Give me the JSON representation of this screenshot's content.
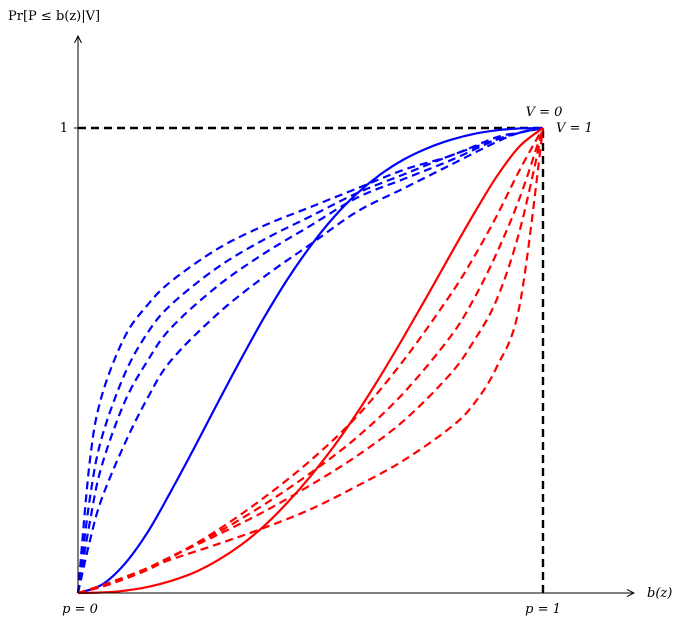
{
  "chart_data": {
    "type": "line",
    "title": "",
    "xlabel": "b(z)",
    "ylabel": "Pr[P ≤ b(z)|V]",
    "xlim": [
      0,
      1.2
    ],
    "ylim": [
      0,
      1.1
    ],
    "x_tick_labels": [
      {
        "x": 0,
        "text": "p = 0"
      },
      {
        "x": 1,
        "text": "p = 1"
      }
    ],
    "y_tick_labels": [
      {
        "y": 1,
        "text": "1"
      }
    ],
    "reference_lines": [
      {
        "kind": "horizontal",
        "y": 1,
        "x_from": 0,
        "x_to": 1,
        "style": "dashed",
        "color": "#000000"
      },
      {
        "kind": "vertical",
        "x": 1,
        "y_from": 0,
        "y_to": 1,
        "style": "dashed",
        "color": "#000000"
      }
    ],
    "annotations": [
      {
        "text": "V = 0",
        "x": 1.0,
        "y": 1.02,
        "color": "#0000ff"
      },
      {
        "text": "V = 1",
        "x": 1.03,
        "y": 1.0,
        "color": "#ff0000"
      }
    ],
    "series": [
      {
        "group": "V0",
        "style": "solid",
        "color": "#0000ff",
        "x": [
          0,
          0.05,
          0.1,
          0.15,
          0.2,
          0.25,
          0.3,
          0.35,
          0.4,
          0.45,
          0.5,
          0.55,
          0.6,
          0.65,
          0.7,
          0.75,
          0.8,
          0.85,
          0.9,
          0.95,
          1
        ],
        "y": [
          0,
          0.017,
          0.062,
          0.131,
          0.219,
          0.312,
          0.408,
          0.502,
          0.592,
          0.674,
          0.746,
          0.808,
          0.859,
          0.9,
          0.932,
          0.956,
          0.974,
          0.987,
          0.995,
          0.999,
          1
        ]
      },
      {
        "group": "V0",
        "style": "dashed",
        "color": "#0000ff",
        "x": [
          0,
          0.025,
          0.05,
          0.1,
          0.15,
          0.2,
          0.3,
          0.4,
          0.5,
          0.6,
          0.7,
          0.8,
          0.9,
          0.95,
          1
        ],
        "y": [
          0,
          0.11,
          0.2,
          0.32,
          0.42,
          0.5,
          0.6,
          0.68,
          0.75,
          0.82,
          0.87,
          0.92,
          0.97,
          0.99,
          1
        ]
      },
      {
        "group": "V0",
        "style": "dashed",
        "color": "#0000ff",
        "x": [
          0,
          0.025,
          0.05,
          0.1,
          0.15,
          0.2,
          0.3,
          0.4,
          0.5,
          0.6,
          0.7,
          0.8,
          0.9,
          0.95,
          1
        ],
        "y": [
          0,
          0.15,
          0.27,
          0.41,
          0.5,
          0.57,
          0.66,
          0.73,
          0.79,
          0.85,
          0.89,
          0.93,
          0.975,
          0.99,
          1
        ]
      },
      {
        "group": "V0",
        "style": "dashed",
        "color": "#0000ff",
        "x": [
          0,
          0.025,
          0.05,
          0.1,
          0.15,
          0.2,
          0.3,
          0.4,
          0.5,
          0.6,
          0.7,
          0.8,
          0.9,
          0.95,
          1
        ],
        "y": [
          0,
          0.2,
          0.33,
          0.47,
          0.56,
          0.62,
          0.7,
          0.76,
          0.81,
          0.86,
          0.9,
          0.94,
          0.975,
          0.99,
          1
        ]
      },
      {
        "group": "V0",
        "style": "dashed",
        "color": "#0000ff",
        "x": [
          0,
          0.025,
          0.05,
          0.1,
          0.15,
          0.2,
          0.3,
          0.4,
          0.5,
          0.6,
          0.7,
          0.8,
          0.9,
          0.95,
          1
        ],
        "y": [
          0,
          0.28,
          0.42,
          0.55,
          0.62,
          0.67,
          0.74,
          0.79,
          0.83,
          0.87,
          0.91,
          0.94,
          0.98,
          0.99,
          1
        ]
      },
      {
        "group": "V1",
        "style": "solid",
        "color": "#ff0000",
        "x": [
          0,
          0.05,
          0.1,
          0.15,
          0.2,
          0.25,
          0.3,
          0.35,
          0.4,
          0.45,
          0.5,
          0.55,
          0.6,
          0.65,
          0.7,
          0.75,
          0.8,
          0.85,
          0.9,
          0.95,
          1
        ],
        "y": [
          0,
          0.001,
          0.005,
          0.013,
          0.026,
          0.044,
          0.07,
          0.103,
          0.144,
          0.194,
          0.251,
          0.315,
          0.387,
          0.466,
          0.55,
          0.637,
          0.726,
          0.813,
          0.895,
          0.961,
          1
        ]
      },
      {
        "group": "V1",
        "style": "dashed",
        "color": "#ff0000",
        "x": [
          0,
          0.05,
          0.1,
          0.15,
          0.2,
          0.3,
          0.4,
          0.5,
          0.6,
          0.7,
          0.8,
          0.85,
          0.9,
          0.95,
          1
        ],
        "y": [
          0,
          0.013,
          0.03,
          0.05,
          0.076,
          0.135,
          0.205,
          0.285,
          0.38,
          0.5,
          0.64,
          0.72,
          0.81,
          0.91,
          1
        ]
      },
      {
        "group": "V1",
        "style": "dashed",
        "color": "#ff0000",
        "x": [
          0,
          0.05,
          0.1,
          0.15,
          0.2,
          0.3,
          0.4,
          0.5,
          0.6,
          0.7,
          0.8,
          0.85,
          0.9,
          0.95,
          1
        ],
        "y": [
          0,
          0.014,
          0.032,
          0.052,
          0.078,
          0.13,
          0.19,
          0.258,
          0.335,
          0.43,
          0.55,
          0.63,
          0.73,
          0.85,
          1
        ]
      },
      {
        "group": "V1",
        "style": "dashed",
        "color": "#ff0000",
        "x": [
          0,
          0.05,
          0.1,
          0.15,
          0.2,
          0.3,
          0.4,
          0.5,
          0.6,
          0.7,
          0.8,
          0.85,
          0.9,
          0.95,
          1
        ],
        "y": [
          0,
          0.015,
          0.034,
          0.054,
          0.078,
          0.125,
          0.175,
          0.232,
          0.295,
          0.37,
          0.47,
          0.54,
          0.63,
          0.78,
          1
        ]
      },
      {
        "group": "V1",
        "style": "dashed",
        "color": "#ff0000",
        "x": [
          0,
          0.05,
          0.1,
          0.15,
          0.2,
          0.3,
          0.4,
          0.5,
          0.6,
          0.7,
          0.8,
          0.85,
          0.9,
          0.95,
          1
        ],
        "y": [
          0,
          0.016,
          0.034,
          0.053,
          0.072,
          0.105,
          0.14,
          0.18,
          0.23,
          0.285,
          0.355,
          0.405,
          0.485,
          0.62,
          1
        ]
      }
    ]
  }
}
